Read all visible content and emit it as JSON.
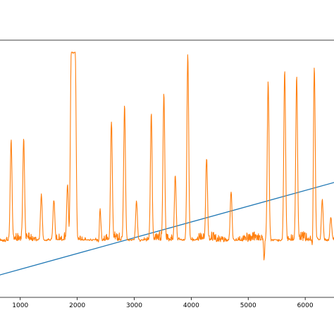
{
  "chart_data": {
    "type": "line",
    "title": "",
    "xlabel": "",
    "ylabel": "",
    "grid": false,
    "xlim": [
      620,
      6530
    ],
    "ylim": [
      0,
      1.0
    ],
    "x_ticks": [
      1000,
      2000,
      3000,
      4000,
      5000,
      6000
    ],
    "x_tick_labels": [
      "1000",
      "2000",
      "3000",
      "4000",
      "5000",
      "6000"
    ],
    "colors": {
      "line_series": "#1f77b4",
      "signal_series": "#ff7f0e",
      "axes": "#000000"
    },
    "series": [
      {
        "type": "line",
        "color": "#1f77b4",
        "x": [
          620,
          6530
        ],
        "y": [
          0.09,
          0.47
        ]
      },
      {
        "type": "signal",
        "color": "#ff7f0e",
        "baseline": 0.23,
        "noise": 0.025,
        "spike_width": 22,
        "peaks": [
          {
            "x": 840,
            "y": 0.64
          },
          {
            "x": 1060,
            "y": 0.65
          },
          {
            "x": 1370,
            "y": 0.42
          },
          {
            "x": 1590,
            "y": 0.4
          },
          {
            "x": 1830,
            "y": 0.46
          },
          {
            "x": 1930,
            "y": 1.0,
            "plateau": 70
          },
          {
            "x": 2400,
            "y": 0.36
          },
          {
            "x": 2600,
            "y": 0.72
          },
          {
            "x": 2830,
            "y": 0.78
          },
          {
            "x": 3040,
            "y": 0.39
          },
          {
            "x": 3300,
            "y": 0.76
          },
          {
            "x": 3520,
            "y": 0.83
          },
          {
            "x": 3720,
            "y": 0.5
          },
          {
            "x": 3940,
            "y": 0.99
          },
          {
            "x": 4270,
            "y": 0.57
          },
          {
            "x": 4700,
            "y": 0.43
          },
          {
            "x": 5350,
            "y": 0.88
          },
          {
            "x": 5640,
            "y": 0.93
          },
          {
            "x": 5850,
            "y": 0.9
          },
          {
            "x": 6160,
            "y": 0.94
          },
          {
            "x": 6300,
            "y": 0.4
          },
          {
            "x": 6450,
            "y": 0.33
          }
        ],
        "dips": [
          {
            "x": 2380,
            "y": 0.18
          },
          {
            "x": 3320,
            "y": 0.18
          },
          {
            "x": 5280,
            "y": 0.14
          },
          {
            "x": 6130,
            "y": 0.14
          }
        ]
      }
    ]
  }
}
